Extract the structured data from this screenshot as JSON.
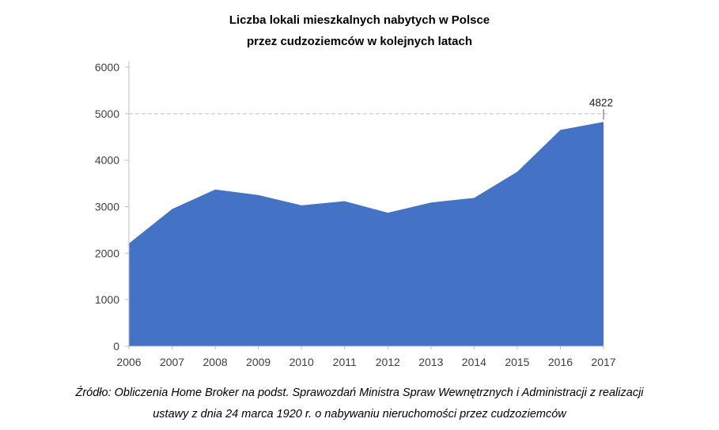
{
  "title": {
    "line1": "Liczba lokali mieszkalnych nabytych w Polsce",
    "line2": "przez cudzoziemców w kolejnych latach"
  },
  "chart_data": {
    "type": "area",
    "title": "Liczba lokali mieszkalnych nabytych w Polsce przez cudzoziemców w kolejnych latach",
    "categories": [
      "2006",
      "2007",
      "2008",
      "2009",
      "2010",
      "2011",
      "2012",
      "2013",
      "2014",
      "2015",
      "2016",
      "2017"
    ],
    "values": [
      2210,
      2950,
      3370,
      3250,
      3030,
      3120,
      2870,
      3090,
      3190,
      3750,
      4650,
      4822
    ],
    "ylim": [
      0,
      6000
    ],
    "ytick_step": 1000,
    "yticks": [
      0,
      1000,
      2000,
      3000,
      4000,
      5000,
      6000
    ],
    "area_color": "#4472C4",
    "axis_color": "#BFBFBF",
    "tick_label_color": "#404040",
    "gridline_value": 5000,
    "grid": "single dashed horizontal gridline at 5000",
    "legend": "none",
    "data_label": {
      "category": "2017",
      "value": 4822,
      "text": "4822"
    }
  },
  "footer": {
    "line1": "Źródło: Obliczenia Home Broker na podst. Sprawozdań Ministra Spraw Wewnętrznych i Administracji z realizacji",
    "line2": "ustawy z dnia 24 marca 1920 r. o nabywaniu nieruchomości przez cudzoziemców"
  }
}
